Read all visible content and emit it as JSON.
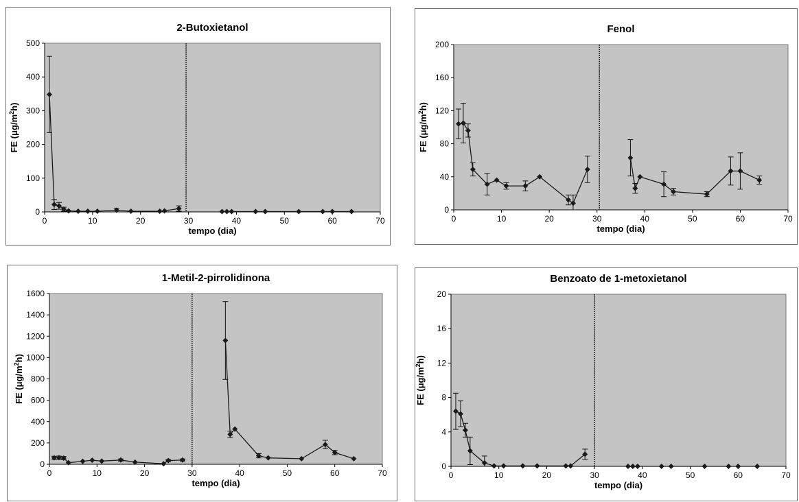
{
  "chart_data": [
    {
      "type": "line",
      "title": "2-Butoxietanol",
      "xlabel": "tempo (dia)",
      "ylabel_prefix": "FE (μg/m",
      "ylabel_sup": "2",
      "ylabel_suffix": "h)",
      "xlim": [
        0,
        70
      ],
      "ylim": [
        0,
        500
      ],
      "xticks": [
        "0",
        "10",
        "20",
        "30",
        "40",
        "50",
        "60",
        "70"
      ],
      "yticks": [
        "0",
        "100",
        "200",
        "300",
        "400",
        "500"
      ],
      "grid": false,
      "legend": "none",
      "separator_x": 29.5,
      "series": [
        {
          "segments": [
            [
              [
                1,
                348
              ],
              [
                2,
                22
              ],
              [
                3,
                18
              ],
              [
                4,
                8
              ],
              [
                5,
                3
              ],
              [
                7,
                2
              ],
              [
                9,
                2
              ],
              [
                11,
                2
              ],
              [
                15,
                5
              ],
              [
                18,
                2
              ],
              [
                24,
                2
              ],
              [
                25,
                3
              ],
              [
                28,
                10
              ]
            ],
            [
              [
                37,
                1
              ],
              [
                38,
                1
              ],
              [
                39,
                1
              ],
              [
                44,
                1
              ],
              [
                46,
                1
              ],
              [
                53,
                1
              ],
              [
                58,
                1
              ],
              [
                60,
                1
              ],
              [
                64,
                1
              ]
            ]
          ],
          "errors": [
            [
              1,
              348,
              113
            ],
            [
              2,
              22,
              15
            ],
            [
              3,
              18,
              10
            ],
            [
              4,
              8,
              6
            ],
            [
              15,
              5,
              6
            ],
            [
              28,
              10,
              8
            ]
          ]
        }
      ]
    },
    {
      "type": "line",
      "title": "Fenol",
      "xlabel": "tempo (dia)",
      "ylabel_prefix": "FE (μg/m",
      "ylabel_sup": "2",
      "ylabel_suffix": "h)",
      "xlim": [
        0,
        70
      ],
      "ylim": [
        0,
        200
      ],
      "xticks": [
        "0",
        "10",
        "20",
        "30",
        "40",
        "50",
        "60",
        "70"
      ],
      "yticks": [
        "0",
        "40",
        "80",
        "120",
        "160",
        "200"
      ],
      "grid": false,
      "legend": "none",
      "separator_x": 30.5,
      "series": [
        {
          "segments": [
            [
              [
                1,
                104
              ],
              [
                2,
                105
              ],
              [
                3,
                96
              ],
              [
                4,
                49
              ],
              [
                7,
                31
              ],
              [
                9,
                36
              ],
              [
                11,
                29
              ],
              [
                15,
                29
              ],
              [
                18,
                40
              ],
              [
                24,
                12
              ],
              [
                25,
                8
              ],
              [
                28,
                49
              ]
            ],
            [
              [
                37,
                63
              ],
              [
                38,
                26
              ],
              [
                39,
                40
              ],
              [
                44,
                31
              ],
              [
                46,
                22
              ],
              [
                53,
                19
              ],
              [
                58,
                47
              ],
              [
                60,
                47
              ],
              [
                64,
                36
              ]
            ]
          ],
          "errors": [
            [
              1,
              104,
              18
            ],
            [
              2,
              105,
              24
            ],
            [
              3,
              96,
              8
            ],
            [
              4,
              49,
              8
            ],
            [
              7,
              31,
              13
            ],
            [
              11,
              29,
              4
            ],
            [
              15,
              29,
              6
            ],
            [
              24,
              12,
              6
            ],
            [
              25,
              8,
              10
            ],
            [
              28,
              49,
              16
            ],
            [
              37,
              63,
              22
            ],
            [
              38,
              26,
              6
            ],
            [
              44,
              31,
              15
            ],
            [
              46,
              22,
              4
            ],
            [
              53,
              19,
              3
            ],
            [
              58,
              47,
              17
            ],
            [
              60,
              47,
              22
            ],
            [
              64,
              36,
              5
            ]
          ]
        }
      ]
    },
    {
      "type": "line",
      "title": "1-Metil-2-pirrolidinona",
      "xlabel": "tempo (dia)",
      "ylabel_prefix": "FE (μg/m",
      "ylabel_sup": "2",
      "ylabel_suffix": "h)",
      "xlim": [
        0,
        70
      ],
      "ylim": [
        0,
        1600
      ],
      "xticks": [
        "0",
        "10",
        "20",
        "30",
        "40",
        "50",
        "60",
        "70"
      ],
      "yticks": [
        "0",
        "200",
        "400",
        "600",
        "800",
        "1000",
        "1200",
        "1400",
        "1600"
      ],
      "grid": false,
      "legend": "none",
      "separator_x": 30,
      "series": [
        {
          "segments": [
            [
              [
                1,
                60
              ],
              [
                2,
                62
              ],
              [
                3,
                58
              ],
              [
                4,
                15
              ],
              [
                7,
                28
              ],
              [
                9,
                38
              ],
              [
                11,
                30
              ],
              [
                15,
                40
              ],
              [
                18,
                20
              ],
              [
                24,
                5
              ],
              [
                25,
                35
              ],
              [
                28,
                40
              ]
            ],
            [
              [
                37,
                1160
              ],
              [
                38,
                280
              ],
              [
                39,
                330
              ],
              [
                44,
                80
              ],
              [
                46,
                60
              ],
              [
                53,
                52
              ],
              [
                58,
                185
              ],
              [
                60,
                110
              ],
              [
                64,
                52
              ]
            ]
          ],
          "errors": [
            [
              1,
              60,
              15
            ],
            [
              2,
              62,
              15
            ],
            [
              3,
              58,
              15
            ],
            [
              15,
              40,
              10
            ],
            [
              25,
              35,
              10
            ],
            [
              28,
              40,
              10
            ],
            [
              37,
              1160,
              365
            ],
            [
              38,
              280,
              30
            ],
            [
              44,
              80,
              20
            ],
            [
              58,
              185,
              40
            ],
            [
              60,
              110,
              20
            ]
          ]
        }
      ]
    },
    {
      "type": "line",
      "title": "Benzoato de 1-metoxietanol",
      "xlabel": "tempo (dia)",
      "ylabel_prefix": "FE (μg/m",
      "ylabel_sup": "2",
      "ylabel_suffix": "h)",
      "xlim": [
        0,
        70
      ],
      "ylim": [
        0,
        20
      ],
      "xticks": [
        "0",
        "10",
        "20",
        "30",
        "40",
        "50",
        "60",
        "70"
      ],
      "yticks": [
        "0",
        "4",
        "8",
        "12",
        "16",
        "20"
      ],
      "grid": false,
      "legend": "none",
      "separator_x": 30,
      "series": [
        {
          "segments": [
            [
              [
                1,
                6.4
              ],
              [
                2,
                6.1
              ],
              [
                3,
                4.2
              ],
              [
                4,
                1.8
              ],
              [
                7,
                0.4
              ],
              [
                9,
                0.05
              ],
              [
                11,
                0.05
              ],
              [
                15,
                0.05
              ],
              [
                18,
                0.05
              ],
              [
                24,
                0.05
              ],
              [
                25,
                0.05
              ],
              [
                28,
                1.4
              ]
            ],
            [
              [
                37,
                0
              ],
              [
                38,
                0
              ],
              [
                39,
                0
              ],
              [
                44,
                0
              ],
              [
                46,
                0
              ],
              [
                53,
                0
              ],
              [
                58,
                0
              ],
              [
                60,
                0
              ],
              [
                64,
                0
              ]
            ]
          ],
          "errors": [
            [
              1,
              6.4,
              2.1
            ],
            [
              2,
              6.1,
              1.5
            ],
            [
              3,
              4.2,
              0.8
            ],
            [
              4,
              1.8,
              1.6
            ],
            [
              7,
              0.4,
              0.8
            ],
            [
              28,
              1.4,
              0.6
            ]
          ]
        }
      ]
    }
  ]
}
